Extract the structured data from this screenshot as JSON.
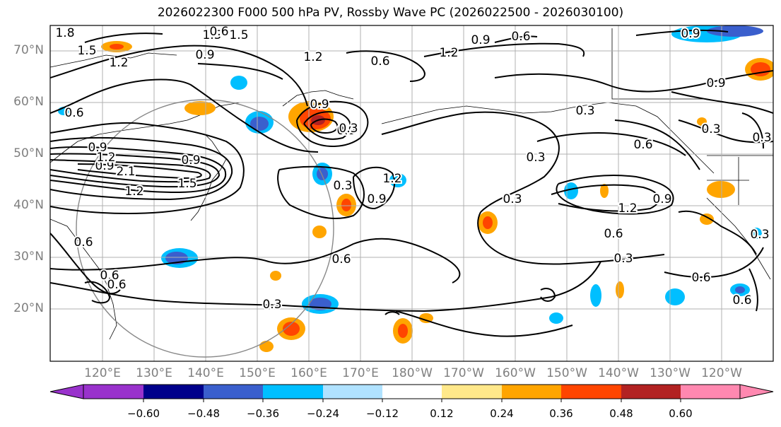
{
  "title": "2026022300 F000 500 hPa PV, Rossby Wave PC (2026022500 - 2026030100)",
  "lat_labels": [
    "70°N",
    "60°N",
    "50°N",
    "40°N",
    "30°N",
    "20°N"
  ],
  "lon_labels": [
    "120°E",
    "130°E",
    "140°E",
    "150°E",
    "160°E",
    "170°E",
    "180°W",
    "170°W",
    "160°W",
    "150°W",
    "140°W",
    "130°W",
    "120°W"
  ],
  "contour_labels": [
    "1.8",
    "1.5",
    "1.5",
    "1.2",
    "0.9",
    "0.6",
    "0.9",
    "1.2",
    "0.6",
    "0.9",
    "0.6",
    "0.9",
    "0.6",
    "0.9",
    "1.2",
    "2.1",
    "1.5",
    "1.2",
    "0.9",
    "0.6",
    "0.3",
    "0.6",
    "0.6",
    "0.3",
    "0.9",
    "1.2",
    "0.3",
    "0.3",
    "0.3",
    "0.3",
    "0.6",
    "0.9",
    "0.3",
    "0.9",
    "0.6",
    "0.6",
    "0.3",
    "0.6",
    "1.2",
    "0.9",
    "0.3",
    "0.6",
    "0.3",
    "1.2",
    "0.9",
    "1.5"
  ],
  "colorbar": {
    "ticks": [
      "−0.60",
      "−0.48",
      "−0.36",
      "−0.24",
      "−0.12",
      "0.12",
      "0.24",
      "0.36",
      "0.48",
      "0.60"
    ],
    "colors": [
      "#9932CC",
      "#00008B",
      "#3A5FCD",
      "#00BFFF",
      "#B0E2FF",
      "#FFFFFF",
      "#FFE88A",
      "#FFA500",
      "#FF4500",
      "#B22222",
      "#FF88B0",
      "#FF88B0"
    ],
    "under_color": "#9932CC",
    "over_color": "#FF88B0"
  },
  "palette": {
    "orange": "#FFA500",
    "red": "#FF4500",
    "darkred": "#B22222",
    "yellow": "#FFE88A",
    "cyan": "#00BFFF",
    "blue": "#3A5FCD",
    "lightblue": "#B0E2FF"
  }
}
